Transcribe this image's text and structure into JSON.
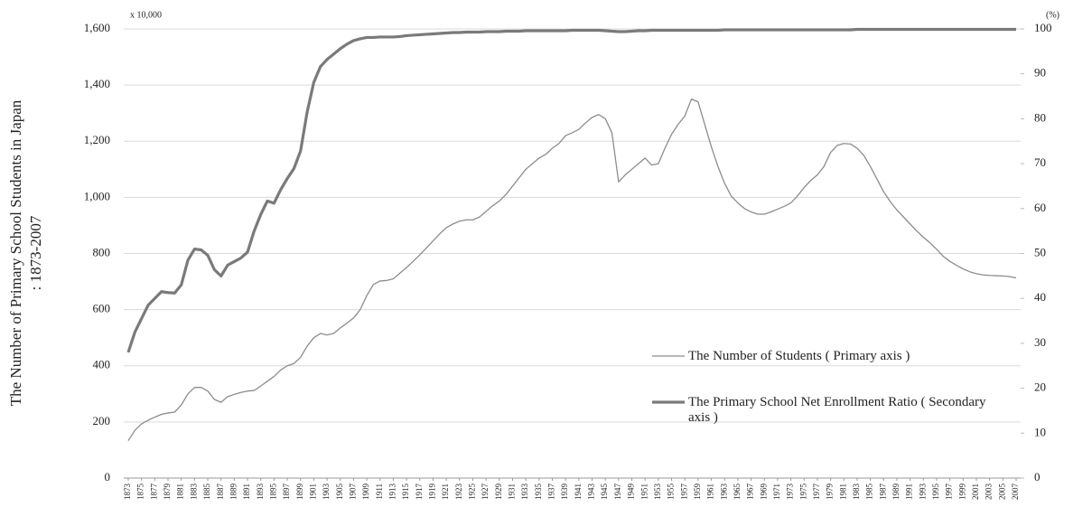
{
  "chart_data": {
    "type": "line",
    "y_label": [
      "The Number of Primary School Students  in Japan",
      ": 1873-2007"
    ],
    "y_unit": "x 10,000",
    "y2_unit": "(%)",
    "x": [
      1873,
      1874,
      1875,
      1876,
      1877,
      1878,
      1879,
      1880,
      1881,
      1882,
      1883,
      1884,
      1885,
      1886,
      1887,
      1888,
      1889,
      1890,
      1891,
      1892,
      1893,
      1894,
      1895,
      1896,
      1897,
      1898,
      1899,
      1900,
      1901,
      1902,
      1903,
      1904,
      1905,
      1906,
      1907,
      1908,
      1909,
      1910,
      1911,
      1912,
      1913,
      1914,
      1915,
      1916,
      1917,
      1918,
      1919,
      1920,
      1921,
      1922,
      1923,
      1924,
      1925,
      1926,
      1927,
      1928,
      1929,
      1930,
      1931,
      1932,
      1933,
      1934,
      1935,
      1936,
      1937,
      1938,
      1939,
      1940,
      1941,
      1942,
      1943,
      1944,
      1945,
      1946,
      1947,
      1948,
      1949,
      1950,
      1951,
      1952,
      1953,
      1954,
      1955,
      1956,
      1957,
      1958,
      1959,
      1960,
      1961,
      1962,
      1963,
      1964,
      1965,
      1966,
      1967,
      1968,
      1969,
      1970,
      1971,
      1972,
      1973,
      1974,
      1975,
      1976,
      1977,
      1978,
      1979,
      1980,
      1981,
      1982,
      1983,
      1984,
      1985,
      1986,
      1987,
      1988,
      1989,
      1990,
      1991,
      1992,
      1993,
      1994,
      1995,
      1996,
      1997,
      1998,
      1999,
      2000,
      2001,
      2002,
      2003,
      2004,
      2005,
      2006,
      2007
    ],
    "xlim": [
      1873,
      2007
    ],
    "xticks": [
      1873,
      1875,
      1877,
      1879,
      1881,
      1883,
      1885,
      1887,
      1889,
      1891,
      1893,
      1895,
      1897,
      1899,
      1901,
      1903,
      1905,
      1907,
      1909,
      1911,
      1913,
      1915,
      1917,
      1919,
      1921,
      1923,
      1925,
      1927,
      1929,
      1931,
      1933,
      1935,
      1937,
      1939,
      1941,
      1943,
      1945,
      1947,
      1949,
      1951,
      1953,
      1955,
      1957,
      1959,
      1961,
      1963,
      1965,
      1967,
      1969,
      1971,
      1973,
      1975,
      1977,
      1979,
      1981,
      1983,
      1985,
      1987,
      1989,
      1991,
      1993,
      1995,
      1997,
      1999,
      2001,
      2003,
      2005,
      2007
    ],
    "ylim": [
      0,
      1600
    ],
    "yticks": [
      0,
      {
        "value": 200,
        "label": "200"
      },
      {
        "value": 400,
        "label": "400"
      },
      {
        "value": 600,
        "label": "600"
      },
      {
        "value": 800,
        "label": "800"
      },
      {
        "value": 1000,
        "label": "1,000"
      },
      {
        "value": 1200,
        "label": "1,200"
      },
      {
        "value": 1400,
        "label": "1,400"
      },
      {
        "value": 1600,
        "label": "1,600"
      }
    ],
    "y2lim": [
      0,
      100
    ],
    "y2ticks": [
      0,
      10,
      20,
      30,
      40,
      50,
      60,
      70,
      80,
      90,
      100
    ],
    "grid": true,
    "series": [
      {
        "name": "The Number of Students ( Primary axis )",
        "color": "#8c8c8c",
        "width": 1.3,
        "values": [
          133,
          170,
          193,
          206,
          217,
          227,
          232,
          235,
          260,
          300,
          323,
          323,
          310,
          280,
          270,
          290,
          298,
          305,
          310,
          312,
          328,
          345,
          362,
          385,
          400,
          408,
          430,
          470,
          500,
          515,
          510,
          515,
          535,
          552,
          570,
          600,
          650,
          690,
          702,
          704,
          710,
          730,
          750,
          772,
          795,
          820,
          845,
          870,
          892,
          905,
          915,
          920,
          920,
          930,
          950,
          970,
          987,
          1010,
          1040,
          1070,
          1100,
          1120,
          1140,
          1153,
          1175,
          1192,
          1220,
          1230,
          1242,
          1265,
          1285,
          1295,
          1280,
          1230,
          1055,
          1080,
          1100,
          1120,
          1140,
          1115,
          1120,
          1175,
          1225,
          1260,
          1290,
          1350,
          1340,
          1260,
          1180,
          1110,
          1050,
          1005,
          980,
          960,
          948,
          940,
          940,
          948,
          958,
          968,
          980,
          1005,
          1035,
          1060,
          1080,
          1110,
          1160,
          1185,
          1192,
          1190,
          1175,
          1150,
          1110,
          1065,
          1020,
          985,
          955,
          930,
          905,
          880,
          858,
          838,
          815,
          790,
          772,
          758,
          745,
          735,
          728,
          724,
          722,
          721,
          720,
          718,
          713
        ]
      },
      {
        "name": "The Primary School Net Enrollment Ratio ( Secondary axis )",
        "color": "#7a7a7a",
        "width": 3.2,
        "axis": "y2",
        "values": [
          28,
          32.5,
          35.5,
          38.5,
          40,
          41.5,
          41.3,
          41.2,
          43,
          48.5,
          51,
          50.8,
          49.6,
          46.4,
          45,
          47.4,
          48.2,
          49,
          50.3,
          55,
          58.7,
          61.7,
          61.2,
          64.2,
          66.7,
          68.9,
          72.8,
          81.5,
          88.1,
          91.6,
          93.2,
          94.4,
          95.6,
          96.6,
          97.4,
          97.8,
          98.1,
          98.1,
          98.2,
          98.2,
          98.2,
          98.3,
          98.5,
          98.6,
          98.7,
          98.8,
          98.9,
          99,
          99.1,
          99.2,
          99.2,
          99.3,
          99.3,
          99.3,
          99.4,
          99.4,
          99.4,
          99.5,
          99.5,
          99.5,
          99.6,
          99.6,
          99.6,
          99.6,
          99.6,
          99.6,
          99.6,
          99.7,
          99.7,
          99.7,
          99.7,
          99.7,
          99.6,
          99.5,
          99.4,
          99.4,
          99.5,
          99.6,
          99.6,
          99.7,
          99.7,
          99.7,
          99.7,
          99.7,
          99.7,
          99.7,
          99.7,
          99.7,
          99.7,
          99.7,
          99.8,
          99.8,
          99.8,
          99.8,
          99.8,
          99.8,
          99.8,
          99.8,
          99.8,
          99.8,
          99.8,
          99.8,
          99.8,
          99.8,
          99.8,
          99.8,
          99.8,
          99.8,
          99.8,
          99.8,
          99.9,
          99.9,
          99.9,
          99.9,
          99.9,
          99.9,
          99.9,
          99.9,
          99.9,
          99.9,
          99.9,
          99.9,
          99.9,
          99.9,
          99.9,
          99.9,
          99.9,
          99.9,
          99.9,
          99.9,
          99.9,
          99.9,
          99.9,
          99.9,
          99.9
        ]
      }
    ]
  }
}
